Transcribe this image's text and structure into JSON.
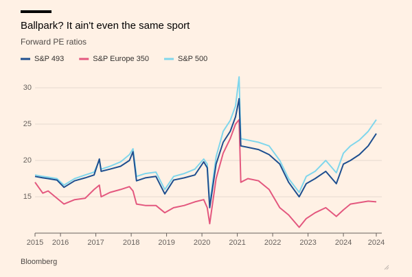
{
  "chart_data": {
    "type": "line",
    "title": "Ballpark? It ain't even the same sport",
    "subtitle": "Forward PE ratios",
    "source": "Bloomberg",
    "x": [
      2015.28,
      2015.5,
      2015.65,
      2015.9,
      2016.1,
      2016.4,
      2016.7,
      2016.95,
      2017.1,
      2017.15,
      2017.4,
      2017.7,
      2017.95,
      2018.05,
      2018.15,
      2018.4,
      2018.7,
      2018.95,
      2019.2,
      2019.5,
      2019.8,
      2020.05,
      2020.15,
      2020.22,
      2020.4,
      2020.6,
      2020.8,
      2020.95,
      2021.05,
      2021.1,
      2021.3,
      2021.6,
      2021.9,
      2022.2,
      2022.45,
      2022.75,
      2022.95,
      2023.2,
      2023.5,
      2023.8,
      2024.0,
      2024.2,
      2024.45,
      2024.7,
      2024.93
    ],
    "series": [
      {
        "name": "S&P 493",
        "color": "#1d4e8f",
        "values": [
          17.8,
          17.6,
          17.5,
          17.3,
          16.3,
          17.2,
          17.6,
          18.0,
          20.2,
          18.5,
          18.8,
          19.2,
          20.0,
          21.2,
          17.2,
          17.6,
          17.8,
          15.4,
          17.3,
          17.6,
          18.0,
          19.8,
          19.0,
          13.5,
          19.5,
          22.5,
          24.0,
          26.0,
          28.5,
          22.0,
          21.8,
          21.5,
          20.8,
          19.5,
          17.0,
          15.0,
          16.8,
          17.5,
          18.5,
          16.8,
          19.5,
          20.0,
          20.8,
          22.0,
          23.7
        ]
      },
      {
        "name": "S&P Europe 350",
        "color": "#e3577e",
        "values": [
          17.0,
          15.5,
          15.8,
          14.8,
          14.0,
          14.6,
          14.8,
          16.0,
          16.6,
          15.0,
          15.6,
          16.0,
          16.4,
          15.8,
          14.0,
          13.8,
          13.8,
          12.8,
          13.5,
          13.8,
          14.3,
          14.6,
          13.5,
          11.3,
          17.5,
          21.0,
          23.0,
          25.0,
          25.6,
          17.0,
          17.5,
          17.2,
          16.0,
          13.5,
          12.5,
          10.8,
          12.0,
          12.8,
          13.5,
          12.3,
          13.2,
          14.0,
          14.2,
          14.4,
          14.3
        ]
      },
      {
        "name": "S&P 500",
        "color": "#7fd6ec",
        "values": [
          18.0,
          17.8,
          17.7,
          17.5,
          16.6,
          17.5,
          18.0,
          18.4,
          20.0,
          18.8,
          19.2,
          19.8,
          20.8,
          21.6,
          17.8,
          18.2,
          18.4,
          16.0,
          17.8,
          18.2,
          18.8,
          20.2,
          19.5,
          14.0,
          20.5,
          24.0,
          25.5,
          27.5,
          31.5,
          23.0,
          22.8,
          22.5,
          22.0,
          20.0,
          17.5,
          15.6,
          17.8,
          18.5,
          20.0,
          18.3,
          21.0,
          22.0,
          22.8,
          24.0,
          25.6
        ]
      }
    ],
    "xlim": [
      2015.28,
      2024.93
    ],
    "xticks": [
      {
        "value": 2015.28,
        "label": "2015"
      },
      2016,
      2017,
      2018,
      2019,
      2020,
      2021,
      2022,
      2023,
      2024,
      {
        "value": 2024.93,
        "label": "2024"
      }
    ],
    "ylim": [
      10,
      32
    ],
    "yticks": [
      15,
      20,
      25,
      30
    ],
    "grid": true
  }
}
